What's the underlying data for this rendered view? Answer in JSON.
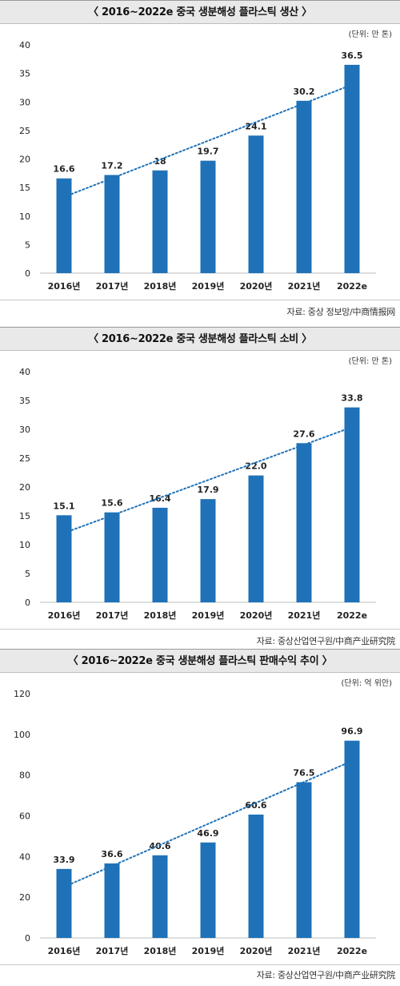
{
  "chart_data": [
    {
      "type": "bar",
      "title": "〈 2016~2022e 중국 생분해성 플라스틱 생산 〉",
      "unit": "(단위: 만 톤)",
      "categories": [
        "2016년",
        "2017년",
        "2018년",
        "2019년",
        "2020년",
        "2021년",
        "2022e"
      ],
      "values": [
        16.6,
        17.2,
        18,
        19.7,
        24.1,
        30.2,
        36.5
      ],
      "value_labels": [
        "16.6",
        "17.2",
        "18",
        "19.7",
        "24.1",
        "30.2",
        "36.5"
      ],
      "yticks": [
        "0",
        "5",
        "10",
        "15",
        "20",
        "25",
        "30",
        "35",
        "40"
      ],
      "ylim": [
        0,
        40
      ],
      "trendline": true,
      "bar_color": "#1f72b8",
      "trend_color": "#1f72b8",
      "source": "자료: 중상 정보망/中商情报网"
    },
    {
      "type": "bar",
      "title": "〈 2016~2022e 중국 생분해성 플라스틱 소비 〉",
      "unit": "(단위: 만 톤)",
      "categories": [
        "2016년",
        "2017년",
        "2018년",
        "2019년",
        "2020년",
        "2021년",
        "2022e"
      ],
      "values": [
        15.1,
        15.6,
        16.4,
        17.9,
        22.0,
        27.6,
        33.8
      ],
      "value_labels": [
        "15.1",
        "15.6",
        "16.4",
        "17.9",
        "22.0",
        "27.6",
        "33.8"
      ],
      "yticks": [
        "0",
        "5",
        "10",
        "15",
        "20",
        "25",
        "30",
        "35",
        "40"
      ],
      "ylim": [
        0,
        40
      ],
      "trendline": true,
      "bar_color": "#1f72b8",
      "trend_color": "#1f72b8",
      "source": "자료: 중상산업연구원/中商产业研究院"
    },
    {
      "type": "bar",
      "title": "〈 2016~2022e 중국 생분해성 플라스틱 판매수익 추이 〉",
      "unit": "(단위: 억 위안)",
      "categories": [
        "2016년",
        "2017년",
        "2018년",
        "2019년",
        "2020년",
        "2021년",
        "2022e"
      ],
      "values": [
        33.9,
        36.6,
        40.6,
        46.9,
        60.6,
        76.5,
        96.9
      ],
      "value_labels": [
        "33.9",
        "36.6",
        "40.6",
        "46.9",
        "60.6",
        "76.5",
        "96.9"
      ],
      "yticks": [
        "0",
        "20",
        "40",
        "60",
        "80",
        "100",
        "120"
      ],
      "ylim": [
        0,
        120
      ],
      "trendline": true,
      "bar_color": "#1f72b8",
      "trend_color": "#1f72b8",
      "source": "자료: 중상산업연구원/中商产业研究院"
    }
  ]
}
